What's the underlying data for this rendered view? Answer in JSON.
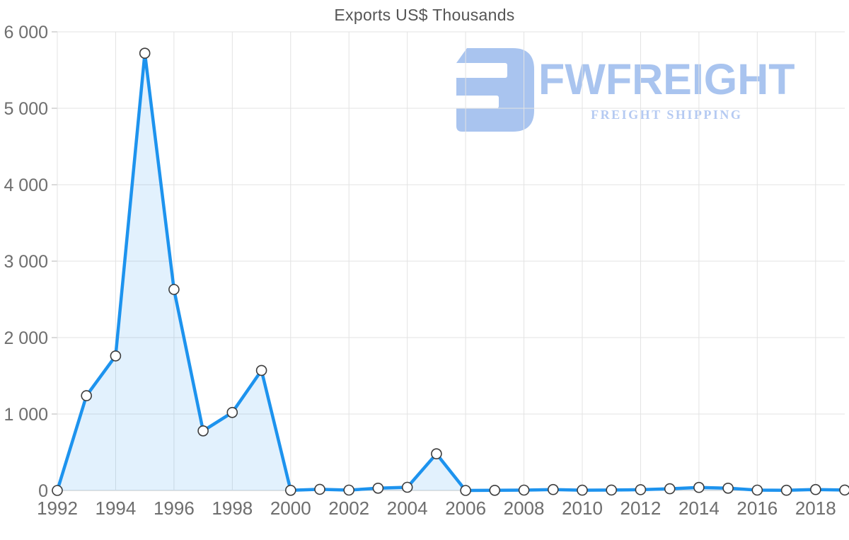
{
  "chart_data": {
    "type": "area",
    "title": "Exports US$ Thousands",
    "xlabel": "",
    "ylabel": "",
    "x": [
      1992,
      1993,
      1994,
      1995,
      1996,
      1997,
      1998,
      1999,
      2000,
      2001,
      2002,
      2003,
      2004,
      2005,
      2006,
      2007,
      2008,
      2009,
      2010,
      2011,
      2012,
      2013,
      2014,
      2015,
      2016,
      2017,
      2018,
      2019
    ],
    "series": [
      {
        "name": "Exports US$ Thousands",
        "values": [
          0,
          1240,
          1760,
          5720,
          2630,
          780,
          1020,
          1570,
          2,
          15,
          5,
          30,
          42,
          480,
          0,
          2,
          5,
          12,
          4,
          6,
          10,
          22,
          40,
          30,
          5,
          3,
          12,
          6
        ]
      }
    ],
    "ylim": [
      0,
      6000
    ],
    "y_tick_values": [
      0,
      1000,
      2000,
      3000,
      4000,
      5000,
      6000
    ],
    "y_tick_labels": [
      "0",
      "1 000",
      "2 000",
      "3 000",
      "4 000",
      "5 000",
      "6 000"
    ],
    "x_tick_years": [
      1992,
      1994,
      1996,
      1998,
      2000,
      2002,
      2004,
      2006,
      2008,
      2010,
      2012,
      2014,
      2016,
      2018
    ],
    "x_tick_labels": [
      "1992",
      "1994",
      "1996",
      "1998",
      "2000",
      "2002",
      "2004",
      "2006",
      "2008",
      "2010",
      "2012",
      "2014",
      "2016",
      "2018"
    ],
    "grid": true,
    "legend": false
  },
  "logo": {
    "name": "FWFREIGHT",
    "tagline": "FREIGHT SHIPPING"
  },
  "colors": {
    "line": "#1d93ee",
    "area_fill": "rgba(29,147,238,0.13)",
    "grid": "#e3e3e3",
    "axis_line": "#c9c9c9",
    "tick": "#b5b5b5",
    "tick_label": "#6e6e6e",
    "title": "#555555",
    "marker_fill": "#ffffff",
    "marker_stroke": "#3d3d3d",
    "logo_main": "#a9c4ef",
    "logo_tagline": "#b5caf2"
  }
}
